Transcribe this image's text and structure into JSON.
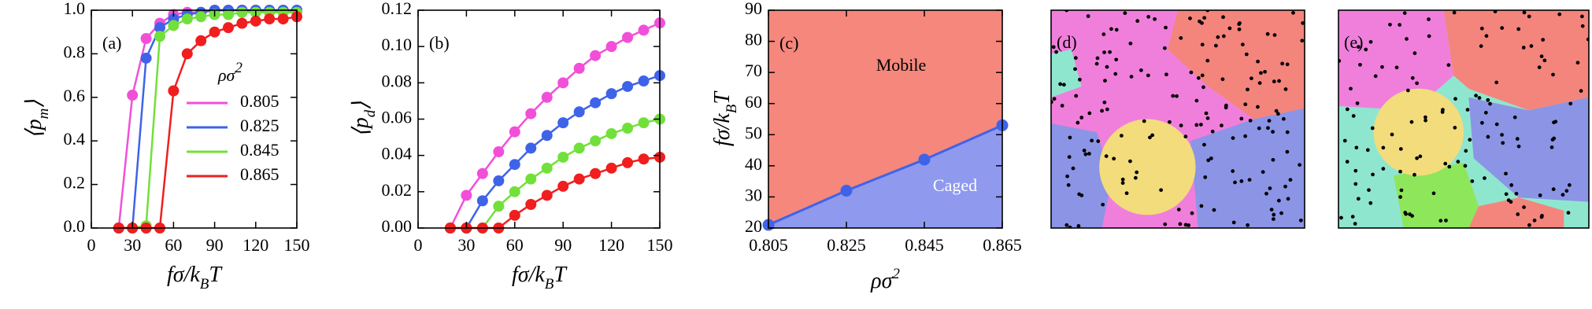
{
  "chart_data": [
    {
      "type": "line",
      "panel_label": "(a)",
      "xlabel": [
        "fσ/k",
        "B",
        "T"
      ],
      "ylabel": [
        "⟨p",
        "m",
        "⟩"
      ],
      "xlim": [
        0,
        150
      ],
      "xticks": [
        0,
        30,
        60,
        90,
        120,
        150
      ],
      "ylim": [
        0,
        1
      ],
      "yticks": [
        {
          "value": 0,
          "label": "0.0"
        },
        0.2,
        0.4,
        0.6,
        0.8,
        {
          "value": 1,
          "label": "1.0"
        }
      ],
      "legend_title": [
        "ρσ",
        "2"
      ],
      "legend": "middle right",
      "x": [
        20,
        30,
        40,
        50,
        60,
        70,
        80,
        90,
        100,
        110,
        120,
        130,
        140,
        150
      ],
      "series": [
        {
          "name": "0.805",
          "color": "#f24fd8",
          "values": [
            0,
            0.61,
            0.87,
            0.94,
            0.98,
            0.99,
            0.99,
            1,
            1,
            1,
            1,
            1,
            1,
            1
          ]
        },
        {
          "name": "0.825",
          "color": "#3f63e8",
          "values": [
            0,
            0,
            0.78,
            0.92,
            0.96,
            0.98,
            0.99,
            1,
            1,
            1,
            1,
            1,
            1,
            1
          ]
        },
        {
          "name": "0.845",
          "color": "#72e03a",
          "values": [
            0,
            0,
            0.01,
            0.88,
            0.93,
            0.96,
            0.97,
            0.98,
            0.98,
            0.99,
            0.99,
            0.99,
            0.99,
            0.99
          ]
        },
        {
          "name": "0.865",
          "color": "#f01e1e",
          "values": [
            0,
            0,
            0,
            0,
            0.63,
            0.8,
            0.86,
            0.9,
            0.92,
            0.94,
            0.95,
            0.96,
            0.96,
            0.97
          ]
        }
      ]
    },
    {
      "type": "line",
      "panel_label": "(b)",
      "xlabel": [
        "fσ/k",
        "B",
        "T"
      ],
      "ylabel": [
        "⟨p",
        "d",
        "⟩"
      ],
      "xlim": [
        0,
        150
      ],
      "xticks": [
        0,
        30,
        60,
        90,
        120,
        150
      ],
      "ylim": [
        0,
        0.12
      ],
      "yticks": [
        {
          "value": 0,
          "label": "0.00"
        },
        0.02,
        0.04,
        0.06,
        0.08,
        {
          "value": 0.1,
          "label": "0.10"
        },
        0.12
      ],
      "x": [
        20,
        30,
        40,
        50,
        60,
        70,
        80,
        90,
        100,
        110,
        120,
        130,
        140,
        150
      ],
      "series": [
        {
          "name": "0.805",
          "color": "#f24fd8",
          "values": [
            0,
            0.018,
            0.03,
            0.042,
            0.053,
            0.063,
            0.072,
            0.08,
            0.088,
            0.095,
            0.1,
            0.105,
            0.109,
            0.113
          ]
        },
        {
          "name": "0.825",
          "color": "#3f63e8",
          "values": [
            0,
            0,
            0.015,
            0.026,
            0.035,
            0.044,
            0.051,
            0.058,
            0.064,
            0.069,
            0.074,
            0.078,
            0.081,
            0.084
          ]
        },
        {
          "name": "0.845",
          "color": "#72e03a",
          "values": [
            0,
            0,
            0,
            0.012,
            0.02,
            0.027,
            0.033,
            0.039,
            0.044,
            0.048,
            0.052,
            0.055,
            0.058,
            0.06
          ]
        },
        {
          "name": "0.865",
          "color": "#f01e1e",
          "values": [
            0,
            0,
            0,
            0,
            0.007,
            0.013,
            0.018,
            0.023,
            0.027,
            0.03,
            0.033,
            0.036,
            0.038,
            0.039
          ]
        }
      ]
    },
    {
      "type": "phase",
      "panel_label": "(c)",
      "xlabel": [
        "ρσ",
        "2"
      ],
      "ylabel": [
        "fσ/k",
        "B",
        "T"
      ],
      "xlim": [
        0.805,
        0.865
      ],
      "xticks": [
        0.805,
        0.825,
        0.845,
        0.865
      ],
      "ylim": [
        20,
        90
      ],
      "yticks": [
        20,
        30,
        40,
        50,
        60,
        70,
        80,
        90
      ],
      "x": [
        0.805,
        0.825,
        0.845,
        0.865
      ],
      "values": [
        21,
        32,
        42,
        53
      ],
      "color": "#3f63e8",
      "regions": [
        {
          "label": "Mobile",
          "color": "#f5877c"
        },
        {
          "label": "Caged",
          "color": "#8f99ee"
        }
      ]
    }
  ],
  "images": [
    {
      "label": "(d)"
    },
    {
      "label": "(e)"
    }
  ]
}
